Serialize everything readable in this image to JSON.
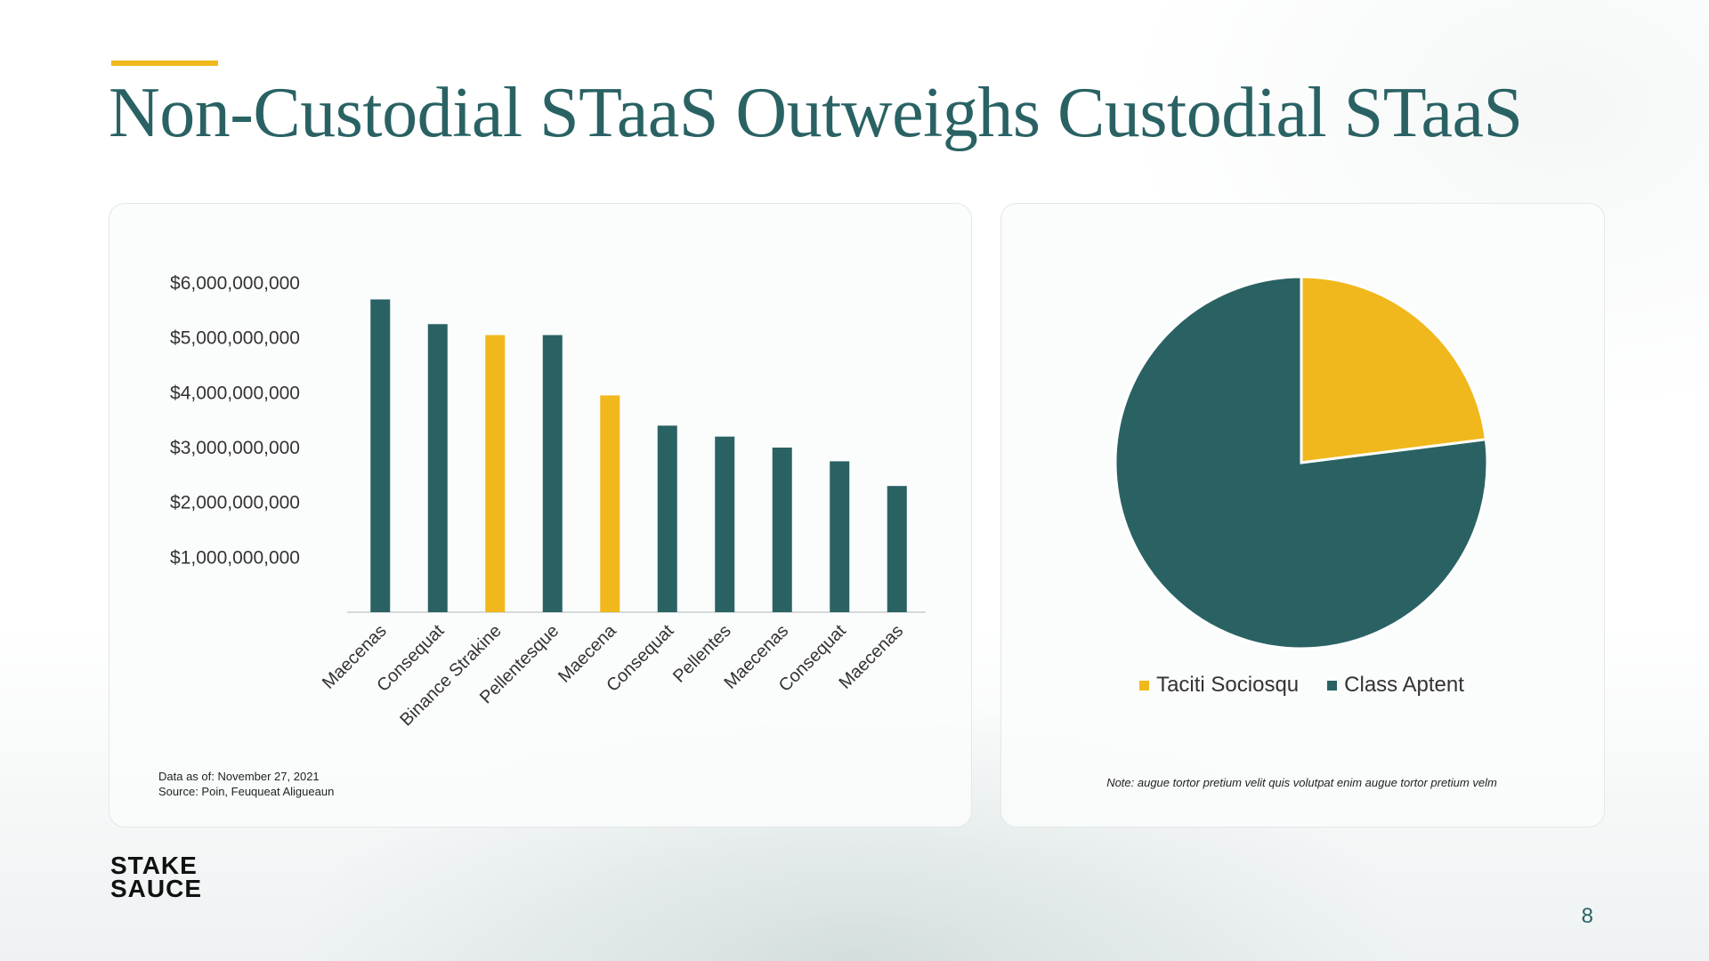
{
  "slide": {
    "title": "Non-Custodial STaaS Outweighs Custodial STaaS",
    "page_number": "8",
    "logo": {
      "line1": "STAKE",
      "line2": "SAUCE"
    },
    "accent_color": "#f0b81c",
    "primary_color": "#2a6264"
  },
  "left_notes": {
    "date": "Data as of: November 27, 2021",
    "source": "Source: Poin, Feuqueat Aligueaun"
  },
  "right_note": "Note: augue tortor pretium velit quis volutpat enim augue tortor pretium velm",
  "chart_data": [
    {
      "type": "bar",
      "title": "",
      "xlabel": "",
      "ylabel": "",
      "categories": [
        "Maecenas",
        "Consequat",
        "Binance Strakine",
        "Pellentesque",
        "Maecena",
        "Consequat",
        "Pellentes",
        "Maecenas",
        "Consequat",
        "Maecenas"
      ],
      "values": [
        5700000000,
        5250000000,
        5050000000,
        5050000000,
        3950000000,
        3400000000,
        3200000000,
        3000000000,
        2750000000,
        2300000000
      ],
      "colors": [
        "#2a6264",
        "#2a6264",
        "#f0b81c",
        "#2a6264",
        "#f0b81c",
        "#2a6264",
        "#2a6264",
        "#2a6264",
        "#2a6264",
        "#2a6264"
      ],
      "ylim": [
        0,
        6000000000
      ],
      "yticks": [
        1000000000,
        2000000000,
        3000000000,
        4000000000,
        5000000000,
        6000000000
      ],
      "ytick_labels": [
        "$1,000,000,000",
        "$2,000,000,000",
        "$3,000,000,000",
        "$4,000,000,000",
        "$5,000,000,000",
        "$6,000,000,000"
      ],
      "grid": false,
      "legend": "none"
    },
    {
      "type": "pie",
      "title": "",
      "labels": [
        "Taciti Sociosqu",
        "Class Aptent"
      ],
      "values": [
        23,
        77
      ],
      "colors": [
        "#f0b81c",
        "#2a6264"
      ],
      "legend": "bottom"
    }
  ]
}
